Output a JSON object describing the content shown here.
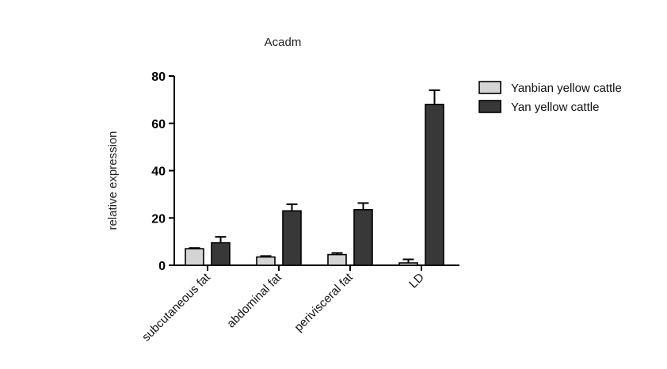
{
  "chart_data": {
    "type": "bar",
    "title": "Acadm",
    "xlabel": "",
    "ylabel": "relative expression",
    "ylim": [
      0,
      80
    ],
    "yticks": [
      "0",
      "20",
      "40",
      "60",
      "80"
    ],
    "categories": [
      "subcutaneous fat",
      "abdominal fat",
      "perivisceral fat",
      "LD"
    ],
    "series": [
      {
        "name": "Yanbian yellow cattle",
        "color": "#d4d4d4",
        "values": [
          7,
          3.5,
          4.5,
          1
        ],
        "errors": [
          0.3,
          0.4,
          0.7,
          1.5
        ]
      },
      {
        "name": "Yan yellow cattle",
        "color": "#383838",
        "values": [
          9.5,
          23,
          23.5,
          68
        ],
        "errors": [
          2.5,
          2.8,
          2.8,
          6
        ]
      }
    ],
    "error_bars": true,
    "grid": false,
    "legend_position": "top-right"
  }
}
